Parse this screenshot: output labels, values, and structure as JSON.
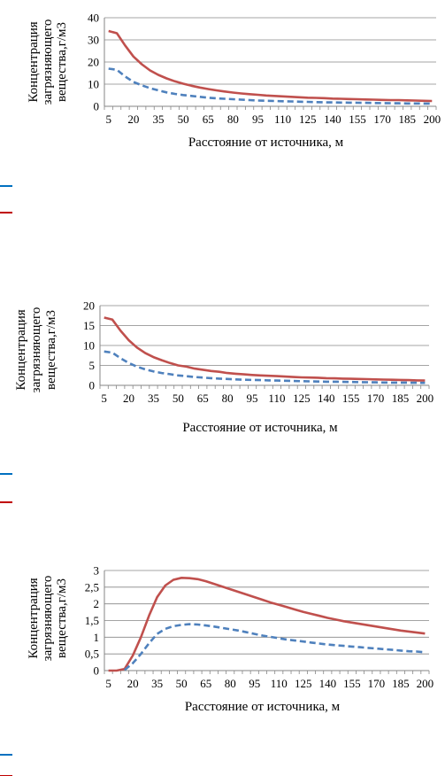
{
  "chart_data": [
    {
      "type": "line",
      "categories": [
        "5",
        "10",
        "15",
        "20",
        "25",
        "30",
        "35",
        "40",
        "45",
        "50",
        "55",
        "60",
        "65",
        "70",
        "75",
        "80",
        "85",
        "90",
        "95",
        "100",
        "105",
        "110",
        "115",
        "120",
        "125",
        "130",
        "135",
        "140",
        "145",
        "150",
        "155",
        "160",
        "165",
        "170",
        "175",
        "180",
        "185",
        "190",
        "195",
        "200"
      ],
      "tick_labels": [
        "5",
        "20",
        "35",
        "50",
        "65",
        "80",
        "95",
        "110",
        "125",
        "140",
        "155",
        "170",
        "185",
        "200"
      ],
      "ylabel": [
        "Концентрация",
        "загрязняющего",
        "вещества,г/м3"
      ],
      "xlabel": "Расстояние от источника, м",
      "ylim": [
        0,
        40
      ],
      "yticks": [
        "0",
        "10",
        "20",
        "30",
        "40"
      ],
      "grid": true,
      "series": [
        {
          "style": "solid",
          "color": "#C0504D",
          "values": [
            34,
            33,
            27.5,
            22.5,
            19,
            16.2,
            14.2,
            12.6,
            11.3,
            10.2,
            9.3,
            8.5,
            7.8,
            7.2,
            6.7,
            6.2,
            5.8,
            5.5,
            5.2,
            4.9,
            4.7,
            4.5,
            4.3,
            4.1,
            3.9,
            3.8,
            3.7,
            3.5,
            3.4,
            3.3,
            3.2,
            3.1,
            3.0,
            2.9,
            2.8,
            2.8,
            2.7,
            2.6,
            2.5,
            2.4
          ]
        },
        {
          "style": "dashed",
          "color": "#4F81BD",
          "values": [
            17,
            16.5,
            13.5,
            11,
            9.5,
            8.2,
            7.2,
            6.3,
            5.6,
            5.1,
            4.7,
            4.3,
            3.9,
            3.6,
            3.4,
            3.2,
            3.0,
            2.8,
            2.6,
            2.5,
            2.4,
            2.3,
            2.2,
            2.1,
            2.0,
            1.9,
            1.8,
            1.75,
            1.7,
            1.65,
            1.6,
            1.55,
            1.5,
            1.45,
            1.4,
            1.35,
            1.3,
            1.3,
            1.25,
            1.2
          ]
        }
      ]
    },
    {
      "type": "line",
      "categories": [
        "5",
        "10",
        "15",
        "20",
        "25",
        "30",
        "35",
        "40",
        "45",
        "50",
        "55",
        "60",
        "65",
        "70",
        "75",
        "80",
        "85",
        "90",
        "95",
        "100",
        "105",
        "110",
        "115",
        "120",
        "125",
        "130",
        "135",
        "140",
        "145",
        "150",
        "155",
        "160",
        "165",
        "170",
        "175",
        "180",
        "185",
        "190",
        "195",
        "200"
      ],
      "tick_labels": [
        "5",
        "20",
        "35",
        "50",
        "65",
        "80",
        "95",
        "110",
        "125",
        "140",
        "155",
        "170",
        "185",
        "200"
      ],
      "ylabel": [
        "Концентрация",
        "загрязняющего",
        "вещества,г/м3"
      ],
      "xlabel": "Расстояние от источника, м",
      "ylim": [
        0,
        20
      ],
      "yticks": [
        "0",
        "5",
        "10",
        "15",
        "20"
      ],
      "grid": true,
      "series": [
        {
          "style": "solid",
          "color": "#C0504D",
          "values": [
            17,
            16.5,
            13.7,
            11.3,
            9.5,
            8.1,
            7.1,
            6.3,
            5.6,
            5.0,
            4.7,
            4.2,
            3.9,
            3.6,
            3.4,
            3.1,
            2.9,
            2.75,
            2.6,
            2.5,
            2.4,
            2.3,
            2.2,
            2.1,
            2.0,
            1.95,
            1.9,
            1.8,
            1.75,
            1.7,
            1.65,
            1.6,
            1.55,
            1.5,
            1.45,
            1.4,
            1.35,
            1.3,
            1.25,
            1.2
          ]
        },
        {
          "style": "dashed",
          "color": "#4F81BD",
          "values": [
            8.5,
            8.2,
            6.8,
            5.6,
            4.7,
            4.0,
            3.5,
            3.1,
            2.8,
            2.5,
            2.3,
            2.1,
            1.95,
            1.8,
            1.7,
            1.6,
            1.5,
            1.4,
            1.35,
            1.3,
            1.25,
            1.2,
            1.15,
            1.1,
            1.05,
            1.0,
            0.95,
            0.92,
            0.9,
            0.87,
            0.84,
            0.81,
            0.78,
            0.75,
            0.72,
            0.7,
            0.68,
            0.66,
            0.64,
            0.62
          ]
        }
      ]
    },
    {
      "type": "line",
      "categories": [
        "5",
        "10",
        "15",
        "20",
        "25",
        "30",
        "35",
        "40",
        "45",
        "50",
        "55",
        "60",
        "65",
        "70",
        "75",
        "80",
        "85",
        "90",
        "95",
        "100",
        "105",
        "110",
        "115",
        "120",
        "125",
        "130",
        "135",
        "140",
        "145",
        "150",
        "155",
        "160",
        "165",
        "170",
        "175",
        "180",
        "185",
        "190",
        "195",
        "200"
      ],
      "tick_labels": [
        "5",
        "20",
        "35",
        "50",
        "65",
        "80",
        "95",
        "110",
        "125",
        "140",
        "155",
        "170",
        "185",
        "200"
      ],
      "ylabel": [
        "Концентрация",
        "загрязняющего",
        "вещества,г/м3"
      ],
      "xlabel": "Расстояние от источника, м",
      "ylim": [
        0,
        3
      ],
      "yticks": [
        "0",
        "0,5",
        "1",
        "1,5",
        "2",
        "2,5",
        "3"
      ],
      "grid": true,
      "series": [
        {
          "style": "solid",
          "color": "#C0504D",
          "values": [
            0,
            0,
            0.05,
            0.45,
            1.0,
            1.65,
            2.2,
            2.55,
            2.72,
            2.78,
            2.77,
            2.74,
            2.68,
            2.6,
            2.52,
            2.44,
            2.36,
            2.28,
            2.2,
            2.12,
            2.04,
            1.97,
            1.9,
            1.83,
            1.76,
            1.7,
            1.64,
            1.58,
            1.53,
            1.48,
            1.44,
            1.4,
            1.36,
            1.32,
            1.28,
            1.24,
            1.2,
            1.17,
            1.14,
            1.11
          ]
        },
        {
          "style": "dashed",
          "color": "#4F81BD",
          "values": [
            null,
            null,
            0.02,
            0.22,
            0.5,
            0.82,
            1.1,
            1.25,
            1.33,
            1.37,
            1.39,
            1.38,
            1.35,
            1.32,
            1.28,
            1.24,
            1.2,
            1.15,
            1.1,
            1.05,
            1.01,
            0.97,
            0.93,
            0.9,
            0.87,
            0.84,
            0.81,
            0.78,
            0.76,
            0.74,
            0.72,
            0.7,
            0.68,
            0.66,
            0.64,
            0.62,
            0.6,
            0.58,
            0.57,
            0.55
          ]
        }
      ]
    }
  ],
  "legend_swatches": [
    {
      "color": "#0070C0"
    },
    {
      "color": "#C00000"
    }
  ]
}
